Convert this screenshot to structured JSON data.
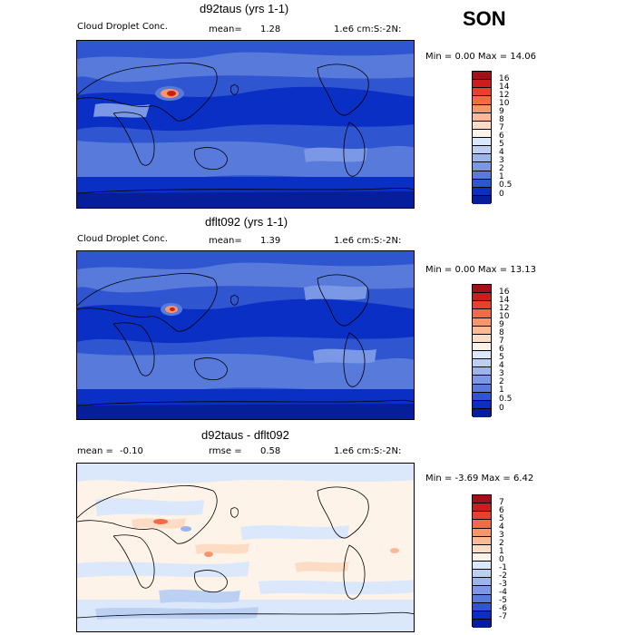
{
  "season": "SON",
  "panels": [
    {
      "title": "d92taus (yrs 1-1)",
      "left_label": "Cloud Droplet Conc.",
      "mid_label": "mean=",
      "mid_value": "1.28",
      "right_label": "1.e6 cm:S:-2N:",
      "range_text": "Min =   0.00 Max =  14.06",
      "colorbar": {
        "ticks": [
          "16",
          "14",
          "12",
          "10",
          "9",
          "8",
          "7",
          "6",
          "5",
          "4",
          "3",
          "2",
          "1",
          "0.5",
          "0"
        ],
        "colors": [
          "#a50f15",
          "#cb1d1d",
          "#e8402a",
          "#f26b43",
          "#f7966a",
          "#fbb996",
          "#fcdcc4",
          "#fef3e8",
          "#dbe7fa",
          "#bcd0f4",
          "#9ab4ec",
          "#7a98e5",
          "#577adb",
          "#2f55d1",
          "#0a2fc4",
          "#061e9a"
        ]
      }
    },
    {
      "title": "dflt092 (yrs 1-1)",
      "left_label": "Cloud Droplet Conc.",
      "mid_label": "mean=",
      "mid_value": "1.39",
      "right_label": "1.e6 cm:S:-2N:",
      "range_text": "Min =   0.00 Max =  13.13",
      "colorbar": {
        "ticks": [
          "16",
          "14",
          "12",
          "10",
          "9",
          "8",
          "7",
          "6",
          "5",
          "4",
          "3",
          "2",
          "1",
          "0.5",
          "0"
        ],
        "colors": [
          "#a50f15",
          "#cb1d1d",
          "#e8402a",
          "#f26b43",
          "#f7966a",
          "#fbb996",
          "#fcdcc4",
          "#fef3e8",
          "#dbe7fa",
          "#bcd0f4",
          "#9ab4ec",
          "#7a98e5",
          "#577adb",
          "#2f55d1",
          "#0a2fc4",
          "#061e9a"
        ]
      }
    },
    {
      "title": "d92taus - dflt092",
      "left_label": "mean =",
      "left_value": "-0.10",
      "mid_label": "rmse =",
      "mid_value": "0.58",
      "right_label": "1.e6 cm:S:-2N:",
      "range_text": "Min =  -3.69 Max =   6.42",
      "colorbar": {
        "ticks": [
          "7",
          "6",
          "5",
          "4",
          "3",
          "2",
          "1",
          "0",
          "-1",
          "-2",
          "-3",
          "-4",
          "-5",
          "-6",
          "-7"
        ],
        "colors": [
          "#a50f15",
          "#cb1d1d",
          "#e8402a",
          "#f26b43",
          "#f7966a",
          "#fbb996",
          "#fcdcc4",
          "#fef3e8",
          "#dbe7fa",
          "#bcd0f4",
          "#9ab4ec",
          "#7a98e5",
          "#577adb",
          "#2f55d1",
          "#0a2fc4",
          "#061e9a"
        ]
      }
    }
  ],
  "palette": {
    "deep_blue": "#0a2fc4",
    "mid_blue": "#2f55d1",
    "light_blue": "#577adb",
    "pale": "#fef3e8",
    "peach": "#fcdcc4",
    "pale_blue": "#dbe7fa"
  }
}
